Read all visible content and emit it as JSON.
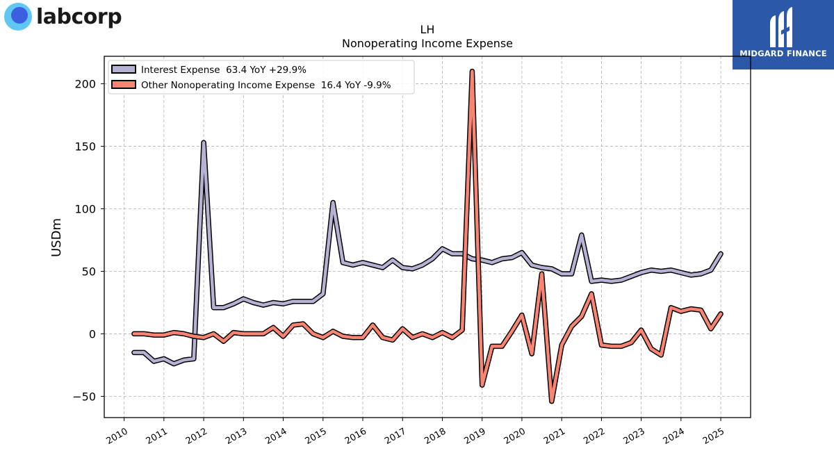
{
  "brand": {
    "company_logo": "labcorp",
    "publisher_logo": "MIDGARD FINANCE"
  },
  "colors": {
    "interest": "#b6b2d4",
    "other": "#f98472",
    "outline": "#000000"
  },
  "chart_data": {
    "type": "line",
    "title": "LH",
    "subtitle": "Nonoperating Income Expense",
    "ylabel": "USDm",
    "xlabel": "",
    "ylim": [
      -67,
      222
    ],
    "xlim": [
      2009.5,
      2025.75
    ],
    "yticks": [
      -50,
      0,
      50,
      100,
      150,
      200
    ],
    "xticks": [
      2010,
      2011,
      2012,
      2013,
      2014,
      2015,
      2016,
      2017,
      2018,
      2019,
      2020,
      2021,
      2022,
      2023,
      2024,
      2025
    ],
    "grid": true,
    "legend_position": "top-left",
    "series": [
      {
        "name": "Interest Expense",
        "legend": "Interest Expense  63.4 YoY +29.9%",
        "color": "#b6b2d4",
        "points": [
          [
            2010.25,
            -15
          ],
          [
            2010.5,
            -15
          ],
          [
            2010.75,
            -22
          ],
          [
            2011.0,
            -20
          ],
          [
            2011.25,
            -24
          ],
          [
            2011.5,
            -21
          ],
          [
            2011.75,
            -20
          ],
          [
            2012.0,
            153
          ],
          [
            2012.25,
            21
          ],
          [
            2012.5,
            21
          ],
          [
            2012.75,
            24
          ],
          [
            2013.0,
            28
          ],
          [
            2013.25,
            25
          ],
          [
            2013.5,
            23
          ],
          [
            2013.75,
            25
          ],
          [
            2014.0,
            24
          ],
          [
            2014.25,
            26
          ],
          [
            2014.5,
            26
          ],
          [
            2014.75,
            26
          ],
          [
            2015.0,
            32
          ],
          [
            2015.25,
            105
          ],
          [
            2015.5,
            57
          ],
          [
            2015.75,
            55
          ],
          [
            2016.0,
            57
          ],
          [
            2016.25,
            55
          ],
          [
            2016.5,
            53
          ],
          [
            2016.75,
            59
          ],
          [
            2017.0,
            53
          ],
          [
            2017.25,
            52
          ],
          [
            2017.5,
            55
          ],
          [
            2017.75,
            60
          ],
          [
            2018.0,
            68
          ],
          [
            2018.25,
            64
          ],
          [
            2018.5,
            64
          ],
          [
            2018.75,
            60
          ],
          [
            2019.0,
            59
          ],
          [
            2019.25,
            57
          ],
          [
            2019.5,
            60
          ],
          [
            2019.75,
            61
          ],
          [
            2020.0,
            65
          ],
          [
            2020.25,
            55
          ],
          [
            2020.5,
            53
          ],
          [
            2020.75,
            52
          ],
          [
            2021.0,
            48
          ],
          [
            2021.25,
            48
          ],
          [
            2021.5,
            79
          ],
          [
            2021.75,
            42
          ],
          [
            2022.0,
            43
          ],
          [
            2022.25,
            42
          ],
          [
            2022.5,
            43
          ],
          [
            2022.75,
            46
          ],
          [
            2023.0,
            49
          ],
          [
            2023.25,
            51
          ],
          [
            2023.5,
            50
          ],
          [
            2023.75,
            51
          ],
          [
            2024.0,
            49
          ],
          [
            2024.25,
            47
          ],
          [
            2024.5,
            48
          ],
          [
            2024.75,
            51
          ],
          [
            2025.0,
            64
          ]
        ]
      },
      {
        "name": "Other Nonoperating Income Expense",
        "legend": "Other Nonoperating Income Expense  16.4 YoY -9.9%",
        "color": "#f98472",
        "points": [
          [
            2010.25,
            0
          ],
          [
            2010.5,
            0
          ],
          [
            2010.75,
            -1
          ],
          [
            2011.0,
            -1
          ],
          [
            2011.25,
            1
          ],
          [
            2011.5,
            0
          ],
          [
            2011.75,
            -2
          ],
          [
            2012.0,
            -3
          ],
          [
            2012.25,
            0
          ],
          [
            2012.5,
            -6
          ],
          [
            2012.75,
            1
          ],
          [
            2013.0,
            0
          ],
          [
            2013.25,
            0
          ],
          [
            2013.5,
            0
          ],
          [
            2013.75,
            5
          ],
          [
            2014.0,
            -2
          ],
          [
            2014.25,
            7
          ],
          [
            2014.5,
            8
          ],
          [
            2014.75,
            0
          ],
          [
            2015.0,
            -3
          ],
          [
            2015.25,
            2
          ],
          [
            2015.5,
            -2
          ],
          [
            2015.75,
            -3
          ],
          [
            2016.0,
            -3
          ],
          [
            2016.25,
            7
          ],
          [
            2016.5,
            -3
          ],
          [
            2016.75,
            -5
          ],
          [
            2017.0,
            4
          ],
          [
            2017.25,
            -3
          ],
          [
            2017.5,
            0
          ],
          [
            2017.75,
            -3
          ],
          [
            2018.0,
            1
          ],
          [
            2018.25,
            -3
          ],
          [
            2018.5,
            3
          ],
          [
            2018.75,
            210
          ],
          [
            2019.0,
            -41
          ],
          [
            2019.25,
            -10
          ],
          [
            2019.5,
            -10
          ],
          [
            2019.75,
            2
          ],
          [
            2020.0,
            15
          ],
          [
            2020.25,
            -16
          ],
          [
            2020.5,
            48
          ],
          [
            2020.75,
            -54
          ],
          [
            2021.0,
            -9
          ],
          [
            2021.25,
            6
          ],
          [
            2021.5,
            14
          ],
          [
            2021.75,
            32
          ],
          [
            2022.0,
            -9
          ],
          [
            2022.25,
            -10
          ],
          [
            2022.5,
            -10
          ],
          [
            2022.75,
            -7
          ],
          [
            2023.0,
            3
          ],
          [
            2023.25,
            -12
          ],
          [
            2023.5,
            -17
          ],
          [
            2023.75,
            21
          ],
          [
            2024.0,
            18
          ],
          [
            2024.25,
            20
          ],
          [
            2024.5,
            19
          ],
          [
            2024.75,
            4
          ],
          [
            2025.0,
            16
          ]
        ]
      }
    ]
  }
}
